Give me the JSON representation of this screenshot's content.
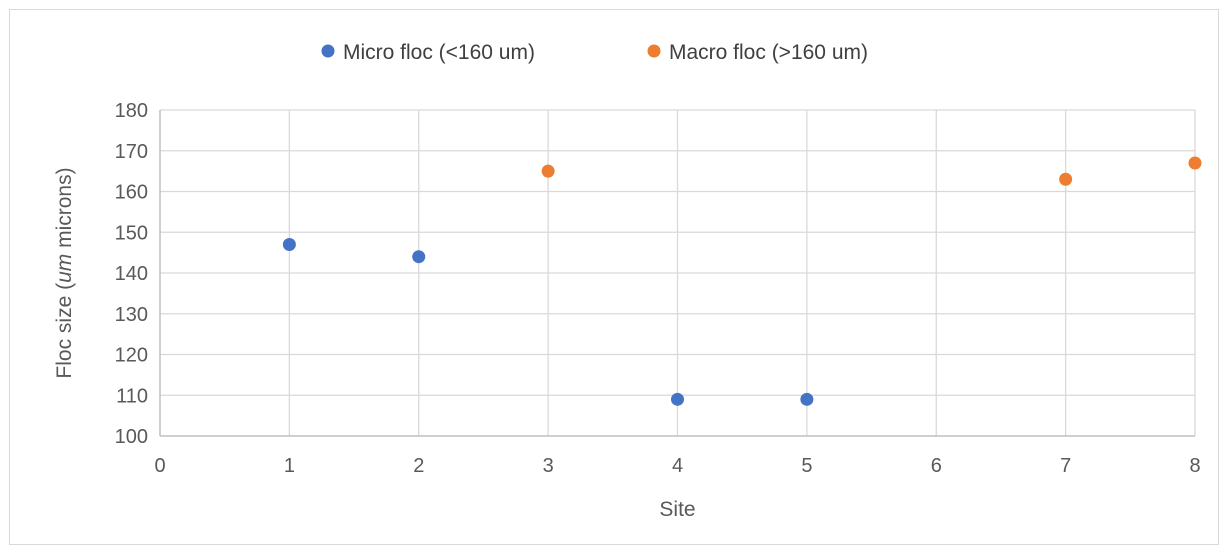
{
  "chart_data": {
    "type": "scatter",
    "title": "",
    "xlabel": "Site",
    "ylabel_parts": [
      "Floc size (",
      "um",
      " microns)"
    ],
    "xlim": [
      0,
      8
    ],
    "ylim": [
      100,
      180
    ],
    "x_ticks": [
      0,
      1,
      2,
      3,
      4,
      5,
      6,
      7,
      8
    ],
    "y_ticks": [
      100,
      110,
      120,
      130,
      140,
      150,
      160,
      170,
      180
    ],
    "grid": true,
    "legend_position": "top",
    "series": [
      {
        "name": "Micro floc (<160 um)",
        "color": "#4472C4",
        "points": [
          {
            "x": 1,
            "y": 147
          },
          {
            "x": 2,
            "y": 144
          },
          {
            "x": 4,
            "y": 109
          },
          {
            "x": 5,
            "y": 109
          }
        ]
      },
      {
        "name": "Macro floc (>160 um)",
        "color": "#ED7D31",
        "points": [
          {
            "x": 3,
            "y": 165
          },
          {
            "x": 7,
            "y": 163
          },
          {
            "x": 8,
            "y": 167
          }
        ]
      }
    ]
  }
}
